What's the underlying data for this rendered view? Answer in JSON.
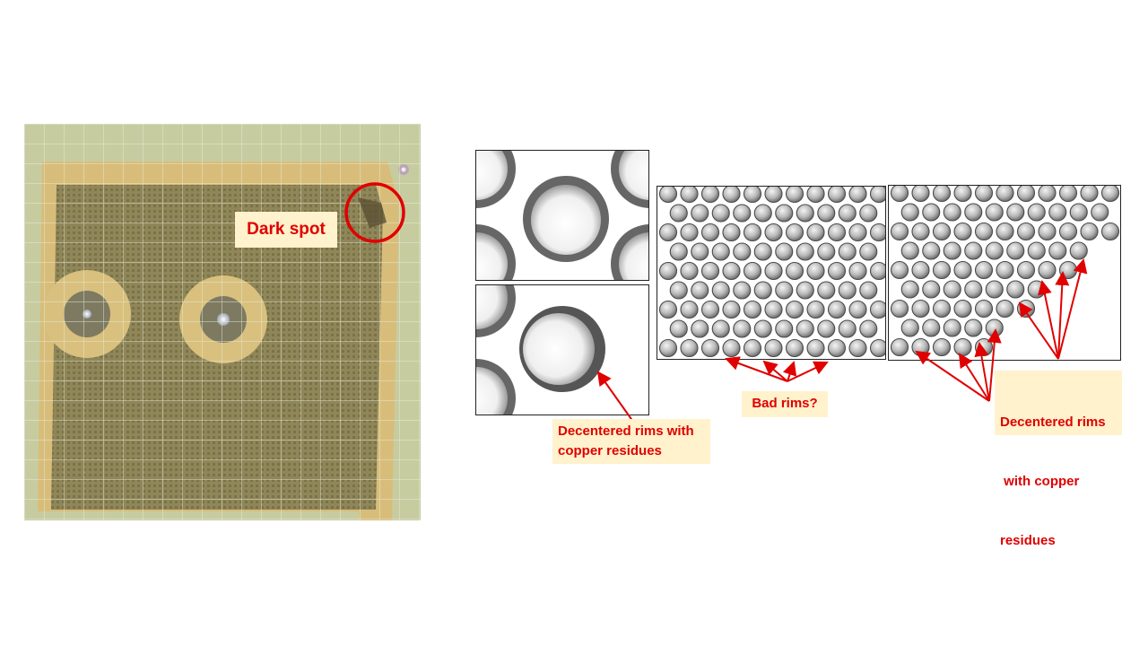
{
  "photo": {
    "description_icon": "pcb-detector-photo",
    "dark_spot_label": "Dark spot",
    "highlight_color": "#e00000"
  },
  "panels": {
    "top_left_icon": "single-hole-closeup",
    "bottom_left_icon": "decentered-hole-closeup",
    "middle_icon": "hole-array-bad-rims",
    "right_icon": "hole-array-decentered-rims"
  },
  "callouts": {
    "decentered_small": [
      "Decentered rims with",
      "copper residues"
    ],
    "bad_rims": "Bad rims?",
    "decentered_right": [
      "Decentered rims",
      " with copper",
      "residues"
    ]
  },
  "colors": {
    "callout_bg": "#fff2cc",
    "callout_text": "#e00000",
    "arrow": "#e00000"
  }
}
